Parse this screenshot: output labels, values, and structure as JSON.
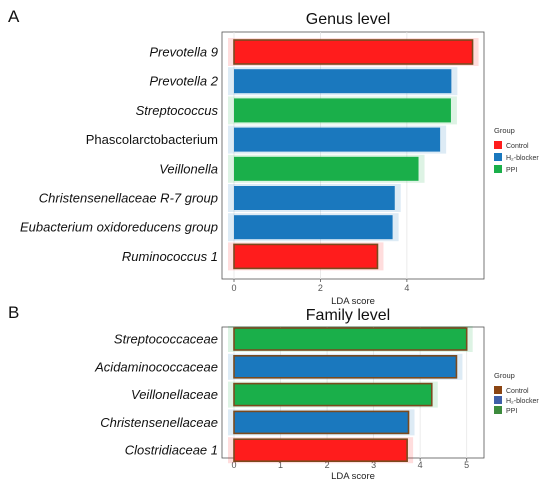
{
  "chart_data": [
    {
      "panel": "A",
      "type": "bar",
      "orientation": "horizontal",
      "title": "Genus level",
      "xlabel": "LDA score",
      "xlim": [
        0,
        5.6
      ],
      "xticks": [
        "0",
        "2",
        "4"
      ],
      "xtick_values": [
        0,
        2,
        4
      ],
      "grid": true,
      "categories": [
        "Prevotella 9",
        "Prevotella 2",
        "Streptococcus",
        "Phascolarctobacterium",
        "Veillonella",
        "Christensenellaceae R-7 group",
        "Eubacterium oxidoreducens group",
        "Ruminococcus 1"
      ],
      "italic": [
        true,
        true,
        true,
        false,
        true,
        true,
        true,
        true
      ],
      "values": [
        5.52,
        5.03,
        5.02,
        4.77,
        4.27,
        3.72,
        3.67,
        3.32
      ],
      "groups": [
        "Control",
        "H2-blocker",
        "PPI",
        "H2-blocker",
        "PPI",
        "H2-blocker",
        "H2-blocker",
        "Control"
      ],
      "legend": {
        "title": "Group",
        "position": "right",
        "items": [
          {
            "label": "Control",
            "color": "#ff1c1c"
          },
          {
            "label": "H₂-blocker",
            "color": "#1a78be"
          },
          {
            "label": "PPI",
            "color": "#1aaf4a"
          }
        ]
      }
    },
    {
      "panel": "B",
      "type": "bar",
      "orientation": "horizontal",
      "title": "Family level",
      "xlabel": "LDA score",
      "xlim": [
        0,
        5.2
      ],
      "xticks": [
        "0",
        "1",
        "2",
        "3",
        "4",
        "5"
      ],
      "xtick_values": [
        0,
        1,
        2,
        3,
        4,
        5
      ],
      "grid": true,
      "categories": [
        "Streptococcaceae",
        "Acidaminococcaceae",
        "Veillonellaceae",
        "Christensenellaceae",
        "Clostridiaceae 1"
      ],
      "italic": [
        true,
        true,
        true,
        true,
        true
      ],
      "values": [
        5.0,
        4.78,
        4.25,
        3.75,
        3.72
      ],
      "groups": [
        "PPI",
        "H2-blocker",
        "PPI",
        "H2-blocker",
        "Control"
      ],
      "legend": {
        "title": "Group",
        "position": "right",
        "items": [
          {
            "label": "Control",
            "color": "#8b4513"
          },
          {
            "label": "H₂-blocker",
            "color": "#3f5fa8"
          },
          {
            "label": "PPI",
            "color": "#3d8b3d"
          }
        ]
      }
    }
  ],
  "colors": {
    "Control": "#ff1c1c",
    "H2-blocker": "#1a78be",
    "PPI": "#1aaf4a",
    "edge_dark": "#7a4a1e"
  }
}
